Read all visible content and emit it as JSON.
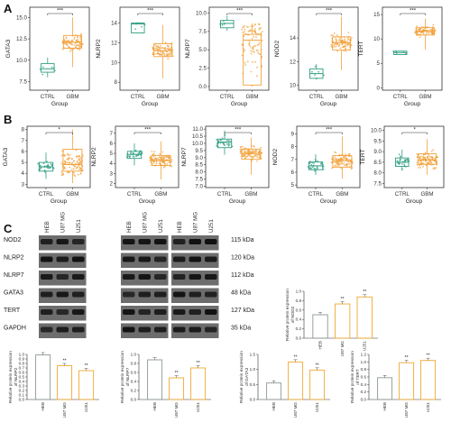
{
  "panels": {
    "a": "A",
    "b": "B",
    "c": "C"
  },
  "colors": {
    "ctrl": "#2e9e80",
    "gbm": "#f2a23c",
    "ctrl_bar": "#8a9a8e",
    "treat_bar": "#f0a830"
  },
  "chart_data": {
    "type": "mixed",
    "row_a": {
      "type": "box",
      "xlabel": "Group",
      "categories": [
        "CTRL",
        "GBM"
      ],
      "plots": [
        {
          "ylabel": "GATA3",
          "yticks": [
            "7.5",
            "10.0",
            "12.5",
            "15.0"
          ],
          "ylim": [
            6.5,
            16.2
          ],
          "sig": "***",
          "ctrl": {
            "min": 8.0,
            "q1": 8.6,
            "median": 9.0,
            "q3": 9.6,
            "max": 10.3
          },
          "gbm": {
            "min": 9.2,
            "q1": 11.4,
            "median": 12.1,
            "q3": 12.9,
            "max": 15.0
          }
        },
        {
          "ylabel": "NLRP2",
          "yticks": [
            "8",
            "10",
            "12",
            "14"
          ],
          "ylim": [
            7.2,
            15.6
          ],
          "sig": "***",
          "ctrl": {
            "min": 13.0,
            "q1": 13.0,
            "median": 13.9,
            "q3": 14.0,
            "max": 14.0
          },
          "gbm": {
            "min": 8.4,
            "q1": 10.6,
            "median": 11.2,
            "q3": 11.9,
            "max": 13.8
          }
        },
        {
          "ylabel": "NLRP7",
          "yticks": [
            "0.0",
            "2.5",
            "5.0",
            "7.5",
            "10.0"
          ],
          "ylim": [
            -0.5,
            10.8
          ],
          "sig": "***",
          "ctrl": {
            "min": 7.6,
            "q1": 8.0,
            "median": 8.6,
            "q3": 9.0,
            "max": 9.6
          },
          "gbm": {
            "min": 0.0,
            "q1": 0.2,
            "median": 6.3,
            "q3": 7.1,
            "max": 8.6
          }
        },
        {
          "ylabel": "NOD2",
          "yticks": [
            "10",
            "12",
            "14"
          ],
          "ylim": [
            9.6,
            16.6
          ],
          "sig": "***",
          "ctrl": {
            "min": 10.5,
            "q1": 10.6,
            "median": 11.0,
            "q3": 11.4,
            "max": 11.8
          },
          "gbm": {
            "min": 11.3,
            "q1": 13.0,
            "median": 13.6,
            "q3": 14.1,
            "max": 15.8
          }
        },
        {
          "ylabel": "TERT",
          "yticks": [
            "0",
            "5",
            "10",
            "15"
          ],
          "ylim": [
            -0.5,
            16.5
          ],
          "sig": "***",
          "ctrl": {
            "min": 6.8,
            "q1": 6.8,
            "median": 7.2,
            "q3": 7.5,
            "max": 7.6
          },
          "gbm": {
            "min": 7.8,
            "q1": 10.8,
            "median": 11.6,
            "q3": 12.3,
            "max": 14.2
          }
        }
      ]
    },
    "row_b": {
      "type": "box",
      "xlabel": "Group",
      "categories": [
        "CTRL",
        "GBM"
      ],
      "plots": [
        {
          "ylabel": "GATA3",
          "yticks": [
            "3",
            "4",
            "5",
            "6",
            "7",
            "8"
          ],
          "ylim": [
            2.7,
            8.3
          ],
          "sig": "*",
          "ctrl": {
            "min": 3.5,
            "q1": 4.2,
            "median": 4.6,
            "q3": 5.0,
            "max": 5.9
          },
          "gbm": {
            "min": 3.1,
            "q1": 4.2,
            "median": 4.8,
            "q3": 6.2,
            "max": 8.0
          }
        },
        {
          "ylabel": "NLRP2",
          "yticks": [
            "2",
            "3",
            "4",
            "5",
            "6",
            "7"
          ],
          "ylim": [
            1.6,
            7.7
          ],
          "sig": "***",
          "ctrl": {
            "min": 3.8,
            "q1": 4.5,
            "median": 4.9,
            "q3": 5.2,
            "max": 6.0
          },
          "gbm": {
            "min": 2.4,
            "q1": 3.8,
            "median": 4.3,
            "q3": 4.8,
            "max": 6.2
          }
        },
        {
          "ylabel": "NLRP7",
          "yticks": [
            "7.0",
            "7.5",
            "8.0",
            "8.5",
            "9.0",
            "9.5",
            "10.0",
            "10.5",
            "11.0"
          ],
          "ylim": [
            6.9,
            11.2
          ],
          "sig": "***",
          "ctrl": {
            "min": 9.2,
            "q1": 9.7,
            "median": 10.1,
            "q3": 10.3,
            "max": 10.9
          },
          "gbm": {
            "min": 7.8,
            "q1": 8.9,
            "median": 9.3,
            "q3": 9.6,
            "max": 10.4
          }
        },
        {
          "ylabel": "NOD2",
          "yticks": [
            "5",
            "6",
            "7",
            "8",
            "9"
          ],
          "ylim": [
            4.8,
            9.6
          ],
          "sig": "***",
          "ctrl": {
            "min": 5.8,
            "q1": 6.2,
            "median": 6.5,
            "q3": 6.8,
            "max": 7.4
          },
          "gbm": {
            "min": 5.5,
            "q1": 6.4,
            "median": 6.9,
            "q3": 7.3,
            "max": 8.8
          }
        },
        {
          "ylabel": "TERT",
          "yticks": [
            "7.5",
            "8.0",
            "8.5",
            "9.0",
            "9.5",
            "10.0"
          ],
          "ylim": [
            7.3,
            10.2
          ],
          "sig": "*",
          "ctrl": {
            "min": 8.1,
            "q1": 8.3,
            "median": 8.5,
            "q3": 8.7,
            "max": 9.1
          },
          "gbm": {
            "min": 7.9,
            "q1": 8.4,
            "median": 8.6,
            "q3": 8.9,
            "max": 9.6
          }
        }
      ]
    },
    "western_blot": {
      "type": "image",
      "groups": [
        [
          "HEB",
          "U87 MG",
          "U251"
        ],
        [
          "HEB",
          "U87 MG",
          "U251"
        ],
        [
          "HEB",
          "U87 MG",
          "U251"
        ]
      ],
      "proteins": [
        "NOD2",
        "NLRP2",
        "NLRP7",
        "GATA3",
        "TERT",
        "GAPDH"
      ],
      "sizes": [
        "115 kDa",
        "120 kDa",
        "112 kDa",
        "48 kDa",
        "127 kDa",
        "35 kDa"
      ]
    },
    "bars": {
      "type": "bar",
      "categories": [
        "HEB",
        "U87 MG",
        "U251"
      ],
      "plots": [
        {
          "ylabel1": "Relative protein expression",
          "ylabel2": "of NOD2",
          "values": [
            0.5,
            0.73,
            0.88
          ],
          "ylim": [
            0,
            1.0
          ],
          "yticks": [
            "0.0",
            "0.2",
            "0.4",
            "0.6",
            "0.8",
            "1.0"
          ],
          "sig": [
            "",
            "**",
            "**"
          ]
        },
        {
          "ylabel1": "Relative protein expression",
          "ylabel2": "of NLRP2",
          "values": [
            0.99,
            0.75,
            0.64
          ],
          "ylim": [
            0,
            1.0
          ],
          "yticks": [
            "0.0",
            "0.1",
            "0.2",
            "0.3",
            "0.4",
            "0.5",
            "0.6",
            "0.7",
            "0.8",
            "0.9",
            "1.0"
          ],
          "sig": [
            "",
            "**",
            "**"
          ]
        },
        {
          "ylabel1": "Relative protein expression",
          "ylabel2": "of NLRP7",
          "values": [
            0.88,
            0.48,
            0.7
          ],
          "ylim": [
            0,
            1.0
          ],
          "yticks": [
            "0.0",
            "0.2",
            "0.4",
            "0.6",
            "0.8",
            "1.0"
          ],
          "sig": [
            "",
            "**",
            "**"
          ]
        },
        {
          "ylabel1": "Relative protein expression",
          "ylabel2": "of GATA3",
          "values": [
            0.55,
            1.25,
            0.98
          ],
          "ylim": [
            0,
            1.5
          ],
          "yticks": [
            "0.0",
            "0.5",
            "1.0",
            "1.5"
          ],
          "sig": [
            "",
            "**",
            "**"
          ]
        },
        {
          "ylabel1": "Relative protein expression",
          "ylabel2": "of TERT",
          "values": [
            0.58,
            0.98,
            1.04
          ],
          "ylim": [
            0,
            1.2
          ],
          "yticks": [
            "0.0",
            "0.2",
            "0.4",
            "0.6",
            "0.8",
            "1.0",
            "1.2"
          ],
          "sig": [
            "",
            "**",
            "**"
          ]
        }
      ]
    }
  }
}
